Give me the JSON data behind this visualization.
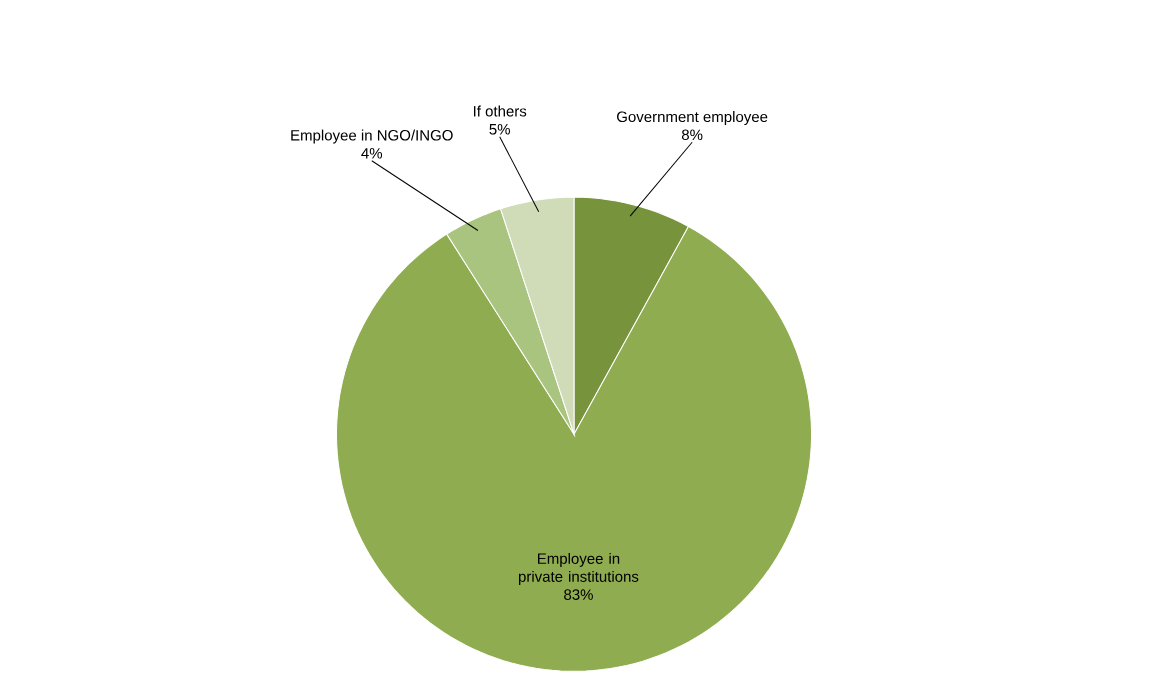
{
  "chart_data": {
    "type": "pie",
    "categories": [
      "Government employee",
      "Employee in private institutions",
      "Employee in NGO/INGO",
      "If others"
    ],
    "values": [
      8,
      83,
      4,
      5
    ],
    "value_labels": [
      "8%",
      "83%",
      "4%",
      "5%"
    ],
    "colors": [
      "#77933c",
      "#8fac50",
      "#a9c47f",
      "#d0dbb8"
    ]
  }
}
